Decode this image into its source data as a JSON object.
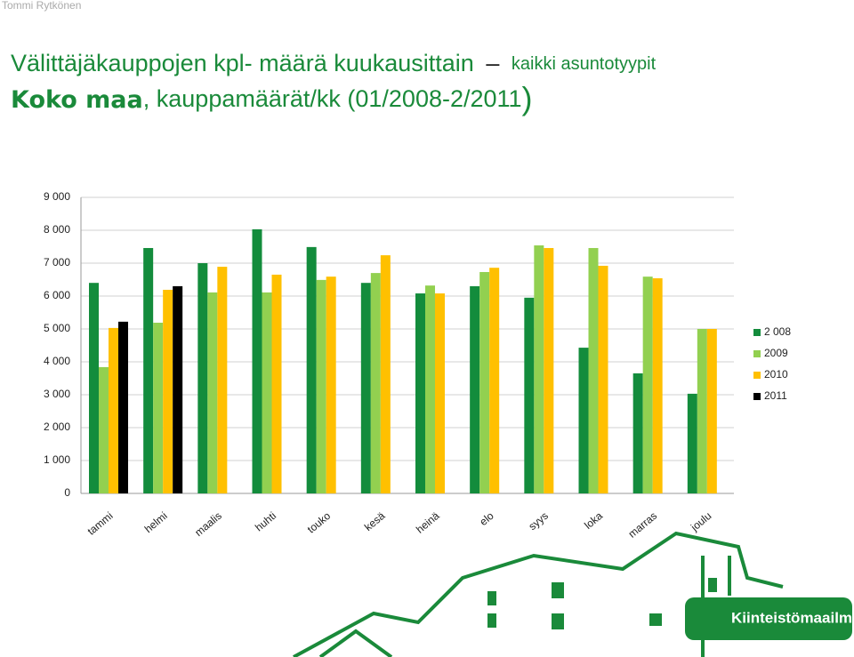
{
  "author": "Tommi Rytkönen",
  "logo": "Kiinteistömaailma",
  "chart_data": {
    "type": "bar",
    "title": "Välittäjäkauppojen kpl- määrä kuukausittain",
    "title_dash": "–",
    "title_suffix": "kaikki asuntotyypit",
    "subtitle_bold": "Koko maa",
    "subtitle": ", kauppamäärät/kk (01/2008-2/2011",
    "subtitle_paren": ")",
    "categories": [
      "tammi",
      "helmi",
      "maalis",
      "huhti",
      "touko",
      "kesä",
      "heinä",
      "elo",
      "syys",
      "loka",
      "marras",
      "joulu"
    ],
    "series": [
      {
        "name": "2 008",
        "color": "#138c3c",
        "values": [
          6400,
          7460,
          7000,
          8030,
          7490,
          6400,
          6080,
          6300,
          5950,
          4430,
          3650,
          3030
        ]
      },
      {
        "name": "2009",
        "color": "#92d050",
        "values": [
          3840,
          5190,
          6110,
          6110,
          6490,
          6700,
          6320,
          6730,
          7540,
          7460,
          6590,
          5000
        ]
      },
      {
        "name": "2010",
        "color": "#ffc000",
        "values": [
          5030,
          6190,
          6890,
          6650,
          6590,
          7240,
          6080,
          6860,
          7460,
          6920,
          6540,
          5000
        ]
      },
      {
        "name": "2011",
        "color": "#000000",
        "values": [
          5220,
          6300,
          null,
          null,
          null,
          null,
          null,
          null,
          null,
          null,
          null,
          null
        ]
      }
    ],
    "ylim": [
      0,
      9000
    ],
    "yticks": [
      0,
      {
        "value": 1000,
        "label": "1 000"
      },
      {
        "value": 2000,
        "label": "2 000"
      },
      {
        "value": 3000,
        "label": "3 000"
      },
      {
        "value": 4000,
        "label": "4 000"
      },
      {
        "value": 5000,
        "label": "5 000"
      },
      {
        "value": 6000,
        "label": "6 000"
      },
      {
        "value": 7000,
        "label": "7 000"
      },
      {
        "value": 8000,
        "label": "8 000"
      },
      {
        "value": 9000,
        "label": "9 000"
      }
    ],
    "grid": true,
    "legend": "right"
  }
}
